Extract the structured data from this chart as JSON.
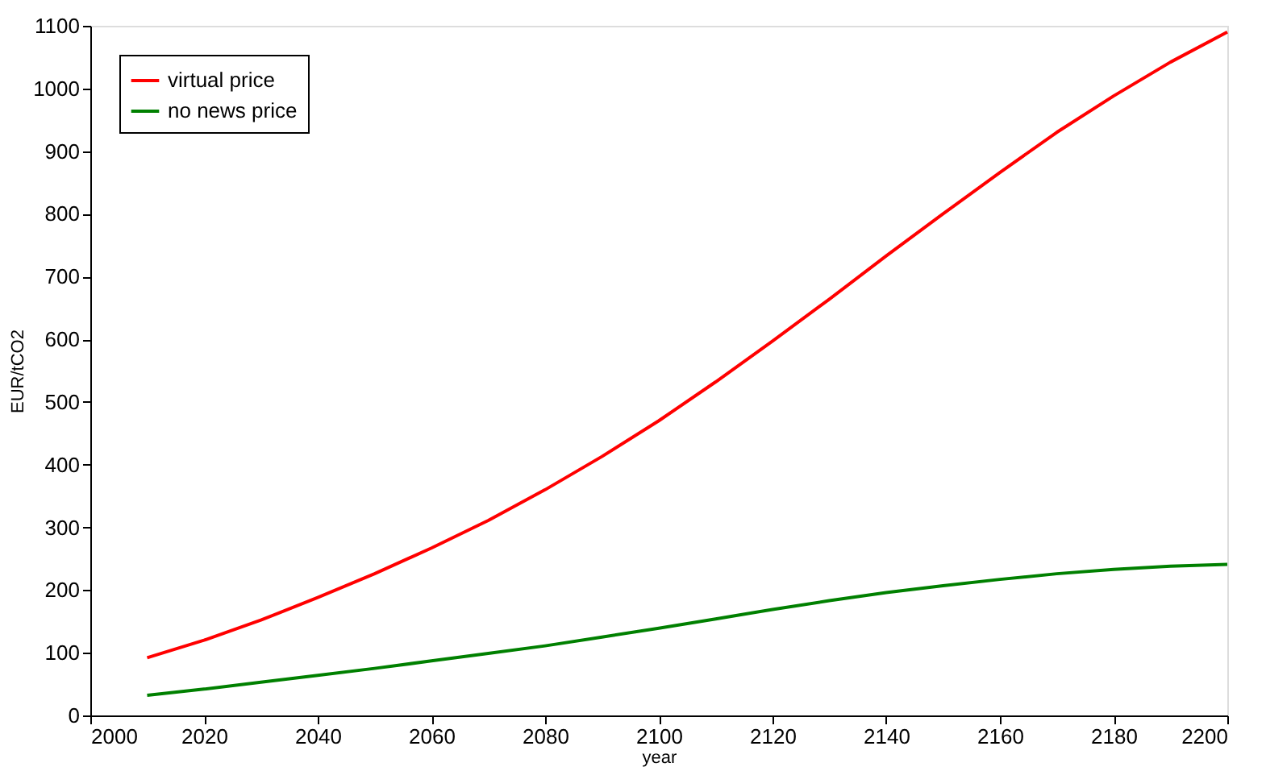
{
  "chart_data": {
    "type": "line",
    "xlabel": "year",
    "ylabel": "EUR/tCO2",
    "x": [
      2010,
      2020,
      2030,
      2040,
      2050,
      2060,
      2070,
      2080,
      2090,
      2100,
      2110,
      2120,
      2130,
      2140,
      2150,
      2160,
      2170,
      2180,
      2190,
      2200
    ],
    "series": [
      {
        "name": "virtual price",
        "color": "#ff0000",
        "values": [
          92,
          120,
          152,
          188,
          226,
          267,
          311,
          360,
          413,
          470,
          532,
          597,
          664,
          733,
          800,
          866,
          930,
          988,
          1042,
          1090
        ]
      },
      {
        "name": "no news price",
        "color": "#008000",
        "values": [
          32,
          42,
          53,
          64,
          75,
          87,
          99,
          111,
          125,
          139,
          154,
          169,
          183,
          196,
          207,
          217,
          226,
          233,
          238,
          241
        ]
      }
    ],
    "xlim": [
      2000,
      2200
    ],
    "xticks": [
      2000,
      2020,
      2040,
      2060,
      2080,
      2100,
      2120,
      2140,
      2160,
      2180,
      2200
    ],
    "ylim": [
      0,
      1100
    ],
    "yticks": [
      0,
      100,
      200,
      300,
      400,
      500,
      600,
      700,
      800,
      900,
      1000,
      1100
    ],
    "grid": false,
    "legend": "top left",
    "marker": "none",
    "line_style": "solid"
  }
}
